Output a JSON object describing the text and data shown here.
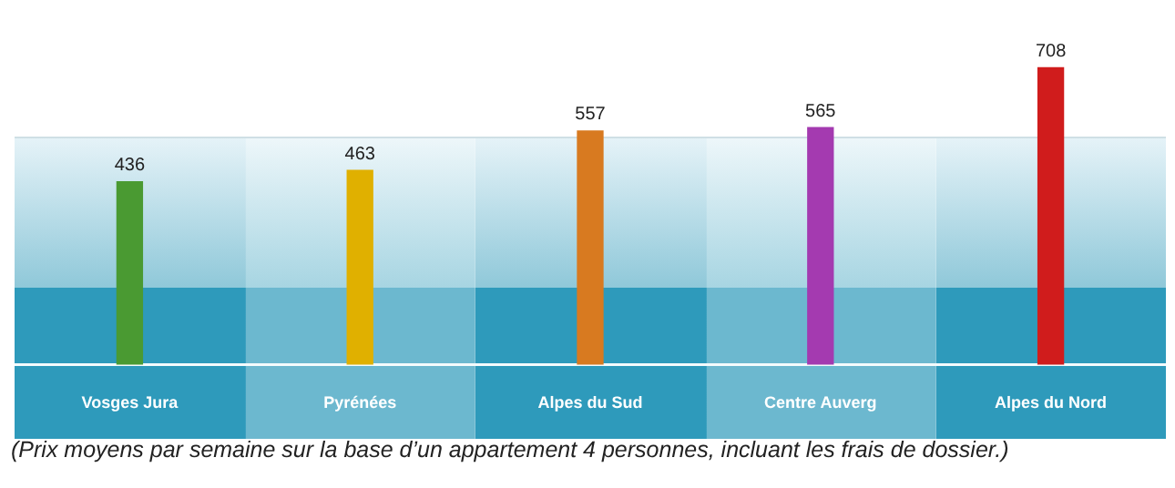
{
  "chart_data": {
    "type": "bar",
    "categories": [
      "Vosges Jura",
      "Pyrénées",
      "Alpes du Sud",
      "Centre Auverg",
      "Alpes du Nord"
    ],
    "values": [
      436,
      463,
      557,
      565,
      708
    ],
    "colors": [
      "#4a9a32",
      "#e0b000",
      "#d87a20",
      "#a43ab0",
      "#d01c1c"
    ],
    "data_labels": true,
    "grid": false,
    "legend": false,
    "annotations": [
      "(Prix moyens par semaine sur la base d’un appartement 4 personnes, incluant les frais de dossier.)"
    ]
  }
}
